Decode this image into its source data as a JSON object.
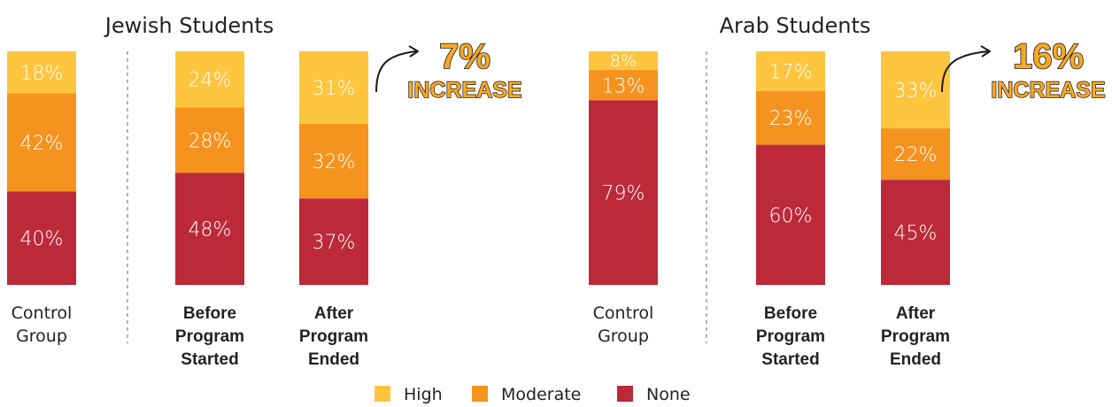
{
  "chart_data": {
    "type": "bar",
    "stacked": true,
    "colors": {
      "High": "#FEC63F",
      "Moderate": "#F5931F",
      "None": "#BC2A39"
    },
    "legend": {
      "placement": "bottom-center",
      "entries": [
        "High",
        "Moderate",
        "None"
      ]
    },
    "groups": [
      {
        "title": "Jewish Students",
        "categories": [
          {
            "label": [
              "Control",
              "Group"
            ],
            "bold": false,
            "values": {
              "High": 18,
              "Moderate": 42,
              "None": 40
            },
            "labels": {
              "High": "18%",
              "Moderate": "42%",
              "None": "40%"
            }
          },
          {
            "label": [
              "Before",
              "Program",
              "Started"
            ],
            "bold": true,
            "values": {
              "High": 24,
              "Moderate": 28,
              "None": 48
            },
            "labels": {
              "High": "24%",
              "Moderate": "28%",
              "None": "48%"
            }
          },
          {
            "label": [
              "After",
              "Program",
              "Ended"
            ],
            "bold": true,
            "values": {
              "High": 31,
              "Moderate": 32,
              "None": 37
            },
            "labels": {
              "High": "31%",
              "Moderate": "32%",
              "None": "37%"
            }
          }
        ],
        "annotation": {
          "value": "7%",
          "text": "INCREASE"
        }
      },
      {
        "title": "Arab Students",
        "categories": [
          {
            "label": [
              "Control",
              "Group"
            ],
            "bold": false,
            "values": {
              "High": 8,
              "Moderate": 13,
              "None": 79
            },
            "labels": {
              "High": "8%",
              "Moderate": "13%",
              "None": "79%"
            }
          },
          {
            "label": [
              "Before",
              "Program",
              "Started"
            ],
            "bold": true,
            "values": {
              "High": 17,
              "Moderate": 23,
              "None": 60
            },
            "labels": {
              "High": "17%",
              "Moderate": "23%",
              "None": "60%"
            }
          },
          {
            "label": [
              "After",
              "Program",
              "Ended"
            ],
            "bold": true,
            "values": {
              "High": 33,
              "Moderate": 22,
              "None": 45
            },
            "labels": {
              "High": "33%",
              "Moderate": "22%",
              "None": "45%"
            }
          }
        ],
        "annotation": {
          "value": "16%",
          "text": "INCREASE"
        }
      }
    ]
  }
}
